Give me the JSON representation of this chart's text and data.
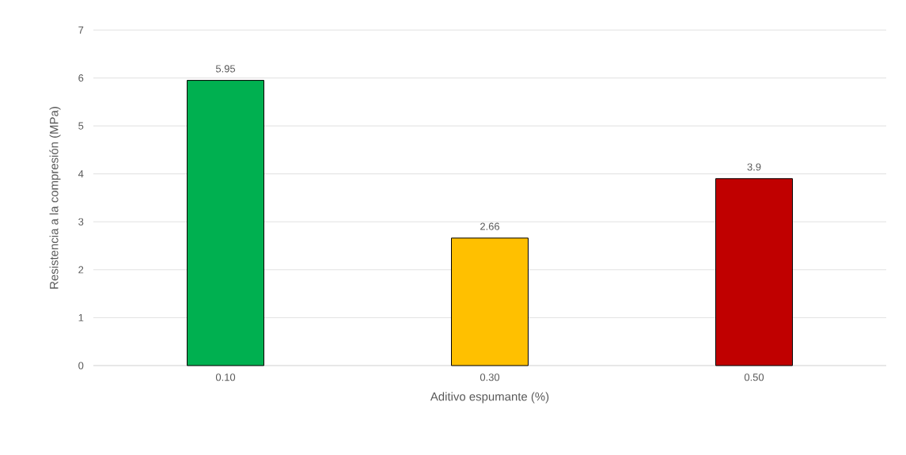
{
  "chart_data": {
    "type": "bar",
    "xlabel": "Aditivo espumante (%)",
    "ylabel": "Resistencia a la compresión (MPa)",
    "categories": [
      "0.10",
      "0.30",
      "0.50"
    ],
    "values": [
      5.95,
      2.66,
      3.9
    ],
    "colors": [
      "#00b050",
      "#ffc000",
      "#c00000"
    ],
    "ylim": [
      0,
      7
    ],
    "yticks": [
      0,
      1,
      2,
      3,
      4,
      5,
      6,
      7
    ],
    "grid": "y",
    "data_labels": true
  }
}
